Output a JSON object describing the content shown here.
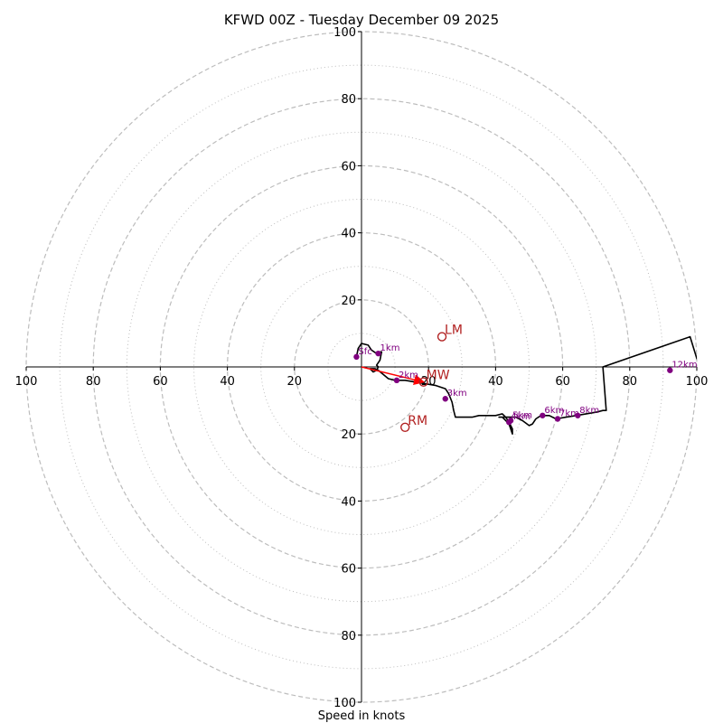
{
  "chart_data": {
    "type": "hodograph",
    "title": "KFWD 00Z - Tuesday December 09 2025",
    "xlabel": "Speed in knots",
    "range": [
      -100,
      100
    ],
    "rings_major": [
      20,
      40,
      60,
      80,
      100
    ],
    "rings_minor": [
      10,
      30,
      50,
      70,
      90
    ],
    "x_tick_labels": [
      "100",
      "80",
      "60",
      "40",
      "20",
      "20",
      "40",
      "60",
      "80",
      "100"
    ],
    "y_tick_labels": [
      "100",
      "80",
      "60",
      "40",
      "20",
      "20",
      "40",
      "60",
      "80",
      "100"
    ],
    "tick_values": [
      -100,
      -80,
      -60,
      -40,
      -20,
      20,
      40,
      60,
      80,
      100
    ],
    "hodograph_line": [
      [
        -1.5,
        3
      ],
      [
        -1,
        5.5
      ],
      [
        0,
        7
      ],
      [
        2,
        6.5
      ],
      [
        3,
        5
      ],
      [
        4.5,
        4
      ],
      [
        5,
        4.5
      ],
      [
        6,
        4.5
      ],
      [
        5.5,
        2
      ],
      [
        4.5,
        0.5
      ],
      [
        5,
        0
      ],
      [
        4.5,
        -1
      ],
      [
        3.5,
        -1.5
      ],
      [
        2.5,
        -0.5
      ],
      [
        4,
        -0.5
      ],
      [
        5,
        -1
      ],
      [
        8,
        -3.5
      ],
      [
        10,
        -4
      ],
      [
        13,
        -4
      ],
      [
        16,
        -4.5
      ],
      [
        19,
        -5
      ],
      [
        22,
        -5.5
      ],
      [
        25,
        -6.5
      ],
      [
        26,
        -8
      ],
      [
        27,
        -10.5
      ],
      [
        27.5,
        -13
      ],
      [
        28,
        -15
      ],
      [
        30,
        -15
      ],
      [
        33,
        -15
      ],
      [
        35,
        -14.5
      ],
      [
        38,
        -14.5
      ],
      [
        40,
        -14.5
      ],
      [
        42,
        -14
      ],
      [
        43,
        -15
      ],
      [
        44,
        -16.5
      ],
      [
        45,
        -18.5
      ],
      [
        45,
        -20
      ],
      [
        44,
        -17
      ],
      [
        42,
        -15
      ],
      [
        41,
        -15
      ],
      [
        46,
        -15
      ],
      [
        48,
        -16
      ],
      [
        50,
        -17.5
      ],
      [
        51,
        -17
      ],
      [
        52,
        -15.5
      ],
      [
        53.5,
        -14.5
      ],
      [
        56,
        -14.5
      ],
      [
        58,
        -15.5
      ],
      [
        61,
        -15
      ],
      [
        64,
        -14.5
      ],
      [
        67,
        -14
      ],
      [
        70,
        -13.5
      ],
      [
        72,
        -13
      ],
      [
        73,
        -13
      ],
      [
        72,
        0
      ],
      [
        98,
        9
      ],
      [
        100,
        2.5
      ],
      [
        103,
        -2
      ]
    ],
    "height_markers": [
      {
        "label": "Sfc",
        "u": -1.5,
        "v": 3
      },
      {
        "label": "1km",
        "u": 5,
        "v": 4
      },
      {
        "label": "2km",
        "u": 10.5,
        "v": -4
      },
      {
        "label": "3km",
        "u": 25,
        "v": -9.5
      },
      {
        "label": "4km",
        "u": 44,
        "v": -16.5
      },
      {
        "label": "5km",
        "u": 44.5,
        "v": -16
      },
      {
        "label": "6km",
        "u": 54,
        "v": -14.5
      },
      {
        "label": "7km",
        "u": 58.5,
        "v": -15.5
      },
      {
        "label": "8km",
        "u": 64.5,
        "v": -14.5
      },
      {
        "label": "12km",
        "u": 92,
        "v": -1
      }
    ],
    "motion_markers": [
      {
        "label": "LM",
        "u": 24,
        "v": 9
      },
      {
        "label": "RM",
        "u": 13,
        "v": -18
      },
      {
        "label": "MW",
        "u": 18.5,
        "v": -4.5
      }
    ],
    "mean_wind_vector": {
      "u": 18.5,
      "v": -4.5
    },
    "colors": {
      "grid": "#bdbdbd",
      "line": "#000000",
      "height_marker": "#800080",
      "motion": "#b22222",
      "vector": "#ff0000"
    }
  }
}
